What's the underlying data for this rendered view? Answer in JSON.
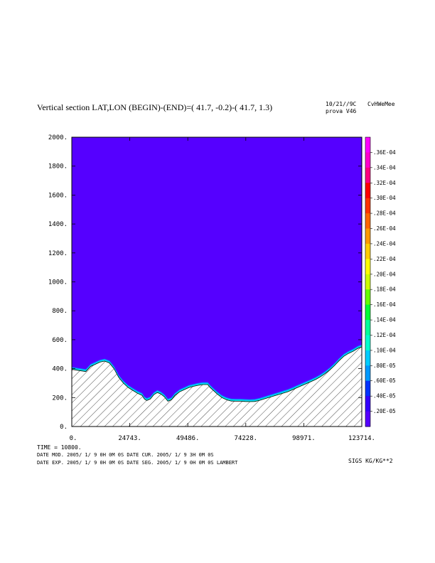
{
  "header": {
    "title": "Vertical section LAT,LON (BEGIN)-(END)=( 41.7, -0.2)-( 41.7,  1.3)",
    "date": "10/21//9C",
    "code": "CvHWeMee",
    "run": "prova V46"
  },
  "info": {
    "time": "TIME =    10800.",
    "line1": "DATE MOD. 2005/ 1/ 9    0H 0M 0S    DATE CUR. 2005/ 1/ 9    3H 0M 0S",
    "line2": "DATE EXP. 2005/ 1/ 9    0H 0M 0S    DATE SEG. 2005/ 1/ 9    0H 0M 0S    LAMBERT",
    "units": "SIGS KG/KG**2"
  },
  "colors": {
    "background_field": "#5500ff",
    "frame": "#000000"
  },
  "chart_data": {
    "type": "heatmap",
    "xlim": [
      0,
      123714
    ],
    "ylim": [
      0,
      2000
    ],
    "xticks": [
      {
        "value": 0,
        "label": "0."
      },
      {
        "value": 24743,
        "label": "24743."
      },
      {
        "value": 49486,
        "label": "49486."
      },
      {
        "value": 74228,
        "label": "74228."
      },
      {
        "value": 98971,
        "label": "98971."
      },
      {
        "value": 123714,
        "label": "123714."
      }
    ],
    "yticks": [
      {
        "value": 0,
        "label": "0."
      },
      {
        "value": 200,
        "label": "200."
      },
      {
        "value": 400,
        "label": "400."
      },
      {
        "value": 600,
        "label": "600."
      },
      {
        "value": 800,
        "label": "800."
      },
      {
        "value": 1000,
        "label": "1000."
      },
      {
        "value": 1200,
        "label": "1200."
      },
      {
        "value": 1400,
        "label": "1400."
      },
      {
        "value": 1600,
        "label": "1600."
      },
      {
        "value": 1800,
        "label": "1800."
      },
      {
        "value": 2000,
        "label": "2000."
      }
    ],
    "terrain": [
      [
        0,
        395
      ],
      [
        4000,
        385
      ],
      [
        6000,
        380
      ],
      [
        8000,
        415
      ],
      [
        10000,
        430
      ],
      [
        12000,
        445
      ],
      [
        14000,
        452
      ],
      [
        16000,
        440
      ],
      [
        18000,
        400
      ],
      [
        20000,
        340
      ],
      [
        22000,
        300
      ],
      [
        24000,
        270
      ],
      [
        26000,
        250
      ],
      [
        28000,
        230
      ],
      [
        30000,
        215
      ],
      [
        31000,
        190
      ],
      [
        32000,
        180
      ],
      [
        33500,
        190
      ],
      [
        35000,
        220
      ],
      [
        36500,
        235
      ],
      [
        38000,
        225
      ],
      [
        39500,
        205
      ],
      [
        41000,
        175
      ],
      [
        42500,
        185
      ],
      [
        44000,
        215
      ],
      [
        46000,
        240
      ],
      [
        48000,
        255
      ],
      [
        50000,
        270
      ],
      [
        52000,
        278
      ],
      [
        54000,
        285
      ],
      [
        56000,
        290
      ],
      [
        58000,
        290
      ],
      [
        59000,
        270
      ],
      [
        60000,
        255
      ],
      [
        62000,
        225
      ],
      [
        64000,
        200
      ],
      [
        66000,
        185
      ],
      [
        68000,
        176
      ],
      [
        70000,
        175
      ],
      [
        72000,
        175
      ],
      [
        74000,
        173
      ],
      [
        76000,
        172
      ],
      [
        78000,
        173
      ],
      [
        80000,
        180
      ],
      [
        82000,
        190
      ],
      [
        84000,
        200
      ],
      [
        86000,
        210
      ],
      [
        88000,
        220
      ],
      [
        90000,
        230
      ],
      [
        92000,
        240
      ],
      [
        94000,
        253
      ],
      [
        96000,
        268
      ],
      [
        98000,
        282
      ],
      [
        100000,
        296
      ],
      [
        102000,
        310
      ],
      [
        104000,
        325
      ],
      [
        106000,
        343
      ],
      [
        108000,
        365
      ],
      [
        110000,
        390
      ],
      [
        112000,
        420
      ],
      [
        114000,
        455
      ],
      [
        116000,
        485
      ],
      [
        118000,
        505
      ],
      [
        120000,
        520
      ],
      [
        122000,
        540
      ],
      [
        123714,
        550
      ]
    ],
    "colorbar": {
      "levels": [
        {
          "label": ".36E-04",
          "value": 3.6e-05,
          "color": "#ff00ff"
        },
        {
          "label": ".34E-04",
          "value": 3.4e-05,
          "color": "#ff00cc"
        },
        {
          "label": ".32E-04",
          "value": 3.2e-05,
          "color": "#ff0080"
        },
        {
          "label": ".30E-04",
          "value": 3e-05,
          "color": "#ff0000"
        },
        {
          "label": ".28E-04",
          "value": 2.8e-05,
          "color": "#ff3300"
        },
        {
          "label": ".26E-04",
          "value": 2.6e-05,
          "color": "#ff6600"
        },
        {
          "label": ".24E-04",
          "value": 2.4e-05,
          "color": "#ff9900"
        },
        {
          "label": ".22E-04",
          "value": 2.2e-05,
          "color": "#ffcc00"
        },
        {
          "label": ".20E-04",
          "value": 2e-05,
          "color": "#ffff00"
        },
        {
          "label": ".18E-04",
          "value": 1.8e-05,
          "color": "#ccff00"
        },
        {
          "label": ".16E-04",
          "value": 1.6e-05,
          "color": "#66ff00"
        },
        {
          "label": ".14E-04",
          "value": 1.4e-05,
          "color": "#00ff33"
        },
        {
          "label": ".12E-04",
          "value": 1.2e-05,
          "color": "#00ff99"
        },
        {
          "label": ".10E-04",
          "value": 1e-05,
          "color": "#00ffcc"
        },
        {
          "label": ".80E-05",
          "value": 8e-06,
          "color": "#00ccff"
        },
        {
          "label": ".60E-05",
          "value": 6e-06,
          "color": "#0099ff"
        },
        {
          "label": ".40E-05",
          "value": 4e-06,
          "color": "#0033ff"
        },
        {
          "label": ".20E-05",
          "value": 2e-06,
          "color": "#3300ff"
        },
        {
          "label": "",
          "value": 0,
          "color": "#5500ff"
        }
      ]
    }
  }
}
